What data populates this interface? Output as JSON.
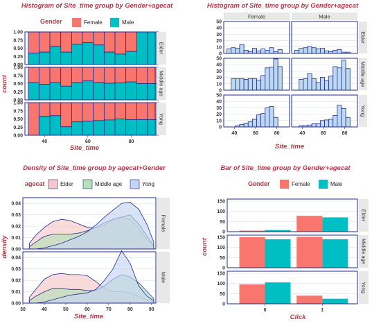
{
  "chart_data": [
    {
      "type": "bar",
      "title": "Histogram of Site_time group by Gender+agecat",
      "xlabel": "Site_time",
      "ylabel": "count",
      "legend": {
        "title": "Gender",
        "entries": [
          "Female",
          "Male"
        ],
        "placement": "top"
      },
      "colors": {
        "Female": "#f8766d",
        "Male": "#00bfc4"
      },
      "facet_rows": [
        "Elder",
        "Middle age",
        "Yong"
      ],
      "x_ticks": [
        "40",
        "60",
        "80"
      ],
      "y_ticks": [
        "0.00",
        "0.25",
        "0.50",
        "0.75",
        "1.00"
      ],
      "xlim": [
        31,
        91
      ],
      "ylim": [
        0,
        1
      ],
      "bins": [
        35,
        40,
        45,
        50,
        55,
        60,
        65,
        70,
        75,
        80,
        85,
        90
      ],
      "male_proportion": {
        "Elder": [
          0.35,
          0.38,
          0.55,
          0.38,
          0.62,
          0.67,
          0.6,
          0.38,
          0.32,
          0.4,
          1.0,
          1.0
        ],
        "Middle age": [
          0.53,
          0.48,
          0.53,
          0.42,
          0.53,
          0.58,
          0.53,
          0.51,
          0.52,
          0.55,
          0.5,
          0.5
        ],
        "Yong": [
          0.0,
          0.58,
          0.6,
          0.26,
          0.41,
          0.43,
          0.45,
          0.47,
          0.5,
          0.48,
          0.48,
          0.48
        ]
      }
    },
    {
      "type": "bar",
      "title": "Histogram of Site_time group by Gender+agecat",
      "xlabel": "Site_time",
      "ylabel": "",
      "facet_columns": [
        "Female",
        "Male"
      ],
      "facet_rows": [
        "Elder",
        "Middle age",
        "Yong"
      ],
      "x_ticks": [
        "40",
        "60",
        "80"
      ],
      "y_ticks": [
        "0",
        "10",
        "20",
        "30",
        "40",
        "50"
      ],
      "xlim": [
        30,
        92
      ],
      "ylim": [
        0,
        50
      ],
      "bin_starts": [
        33,
        37,
        41,
        45,
        49,
        53,
        57,
        61,
        65,
        69,
        73,
        77,
        81,
        85
      ],
      "bin_width": 4,
      "counts": {
        "Elder": {
          "Female": [
            7,
            9,
            8,
            14,
            5,
            3,
            8,
            4,
            7,
            5,
            9,
            3,
            6,
            0
          ],
          "Male": [
            5,
            8,
            9,
            11,
            9,
            7,
            8,
            4,
            3,
            5,
            6,
            2,
            2,
            0
          ]
        },
        "Middle age": {
          "Female": [
            0,
            18,
            18,
            18,
            17,
            18,
            18,
            16,
            23,
            35,
            36,
            49,
            37,
            0
          ],
          "Male": [
            0,
            17,
            18,
            26,
            18,
            12,
            20,
            15,
            22,
            37,
            35,
            47,
            34,
            0
          ]
        },
        "Yong": {
          "Female": [
            0,
            0,
            2,
            4,
            6,
            8,
            12,
            19,
            21,
            30,
            32,
            15,
            0,
            0
          ],
          "Male": [
            0,
            2,
            2,
            3,
            5,
            5,
            10,
            11,
            12,
            18,
            34,
            29,
            15,
            0
          ]
        }
      }
    },
    {
      "type": "area",
      "title": "Density of Site_time group by agecat+Gender",
      "xlabel": "Site_time",
      "ylabel": "density",
      "legend": {
        "title": "agecat",
        "entries": [
          "Elder",
          "Middle age",
          "Yong"
        ],
        "placement": "top"
      },
      "colors": {
        "Elder": "#f8c8c8",
        "Middle age": "#b5e0b8",
        "Yong": "#c4d4f2"
      },
      "facet_rows": [
        "Female",
        "Male"
      ],
      "x_ticks": [
        "30",
        "40",
        "50",
        "60",
        "70",
        "80",
        "90"
      ],
      "y_ticks": [
        "0.00",
        "0.01",
        "0.02",
        "0.03",
        "0.04"
      ],
      "xlim": [
        30,
        92
      ],
      "ylim": [
        0,
        0.045
      ],
      "x": [
        33,
        36,
        40,
        44,
        48,
        52,
        56,
        60,
        64,
        68,
        72,
        76,
        80,
        84,
        88,
        91
      ],
      "series": {
        "Female": {
          "Elder": [
            0.005,
            0.012,
            0.019,
            0.024,
            0.026,
            0.025,
            0.022,
            0.019,
            0.018,
            0.021,
            0.026,
            0.028,
            0.026,
            0.018,
            0.008,
            0.002
          ],
          "Middle age": [
            0.002,
            0.006,
            0.011,
            0.013,
            0.013,
            0.013,
            0.014,
            0.016,
            0.019,
            0.023,
            0.026,
            0.028,
            0.03,
            0.022,
            0.011,
            0.003
          ],
          "Yong": [
            0.0,
            0.0,
            0.001,
            0.003,
            0.005,
            0.008,
            0.011,
            0.015,
            0.021,
            0.028,
            0.034,
            0.04,
            0.041,
            0.035,
            0.021,
            0.006
          ]
        },
        "Male": {
          "Elder": [
            0.005,
            0.012,
            0.021,
            0.025,
            0.026,
            0.025,
            0.025,
            0.024,
            0.019,
            0.013,
            0.01,
            0.01,
            0.009,
            0.006,
            0.003,
            0.001
          ],
          "Middle age": [
            0.002,
            0.006,
            0.01,
            0.013,
            0.013,
            0.012,
            0.012,
            0.011,
            0.011,
            0.015,
            0.021,
            0.025,
            0.023,
            0.018,
            0.01,
            0.004
          ],
          "Yong": [
            0.0,
            0.0,
            0.001,
            0.003,
            0.005,
            0.007,
            0.008,
            0.009,
            0.012,
            0.02,
            0.03,
            0.046,
            0.035,
            0.015,
            0.006,
            0.002
          ]
        }
      }
    },
    {
      "type": "bar",
      "title": "Bar of Site_time group by Gender+agecat",
      "xlabel": "Click",
      "ylabel": "count",
      "legend": {
        "title": "Gender",
        "entries": [
          "Female",
          "Male"
        ],
        "placement": "top"
      },
      "colors": {
        "Female": "#f8766d",
        "Male": "#00bfc4"
      },
      "facet_rows": [
        "Elder",
        "Middle age",
        "Yong"
      ],
      "categories": [
        "0",
        "1"
      ],
      "y_ticks": [
        "0",
        "50",
        "100",
        "150"
      ],
      "ylim": [
        0,
        160
      ],
      "series": {
        "Elder": {
          "Female": [
            5,
            78
          ],
          "Male": [
            8,
            70
          ]
        },
        "Middle age": {
          "Female": [
            150,
            152
          ],
          "Male": [
            140,
            140
          ]
        },
        "Yong": {
          "Female": [
            95,
            40
          ],
          "Male": [
            105,
            25
          ]
        }
      }
    }
  ]
}
